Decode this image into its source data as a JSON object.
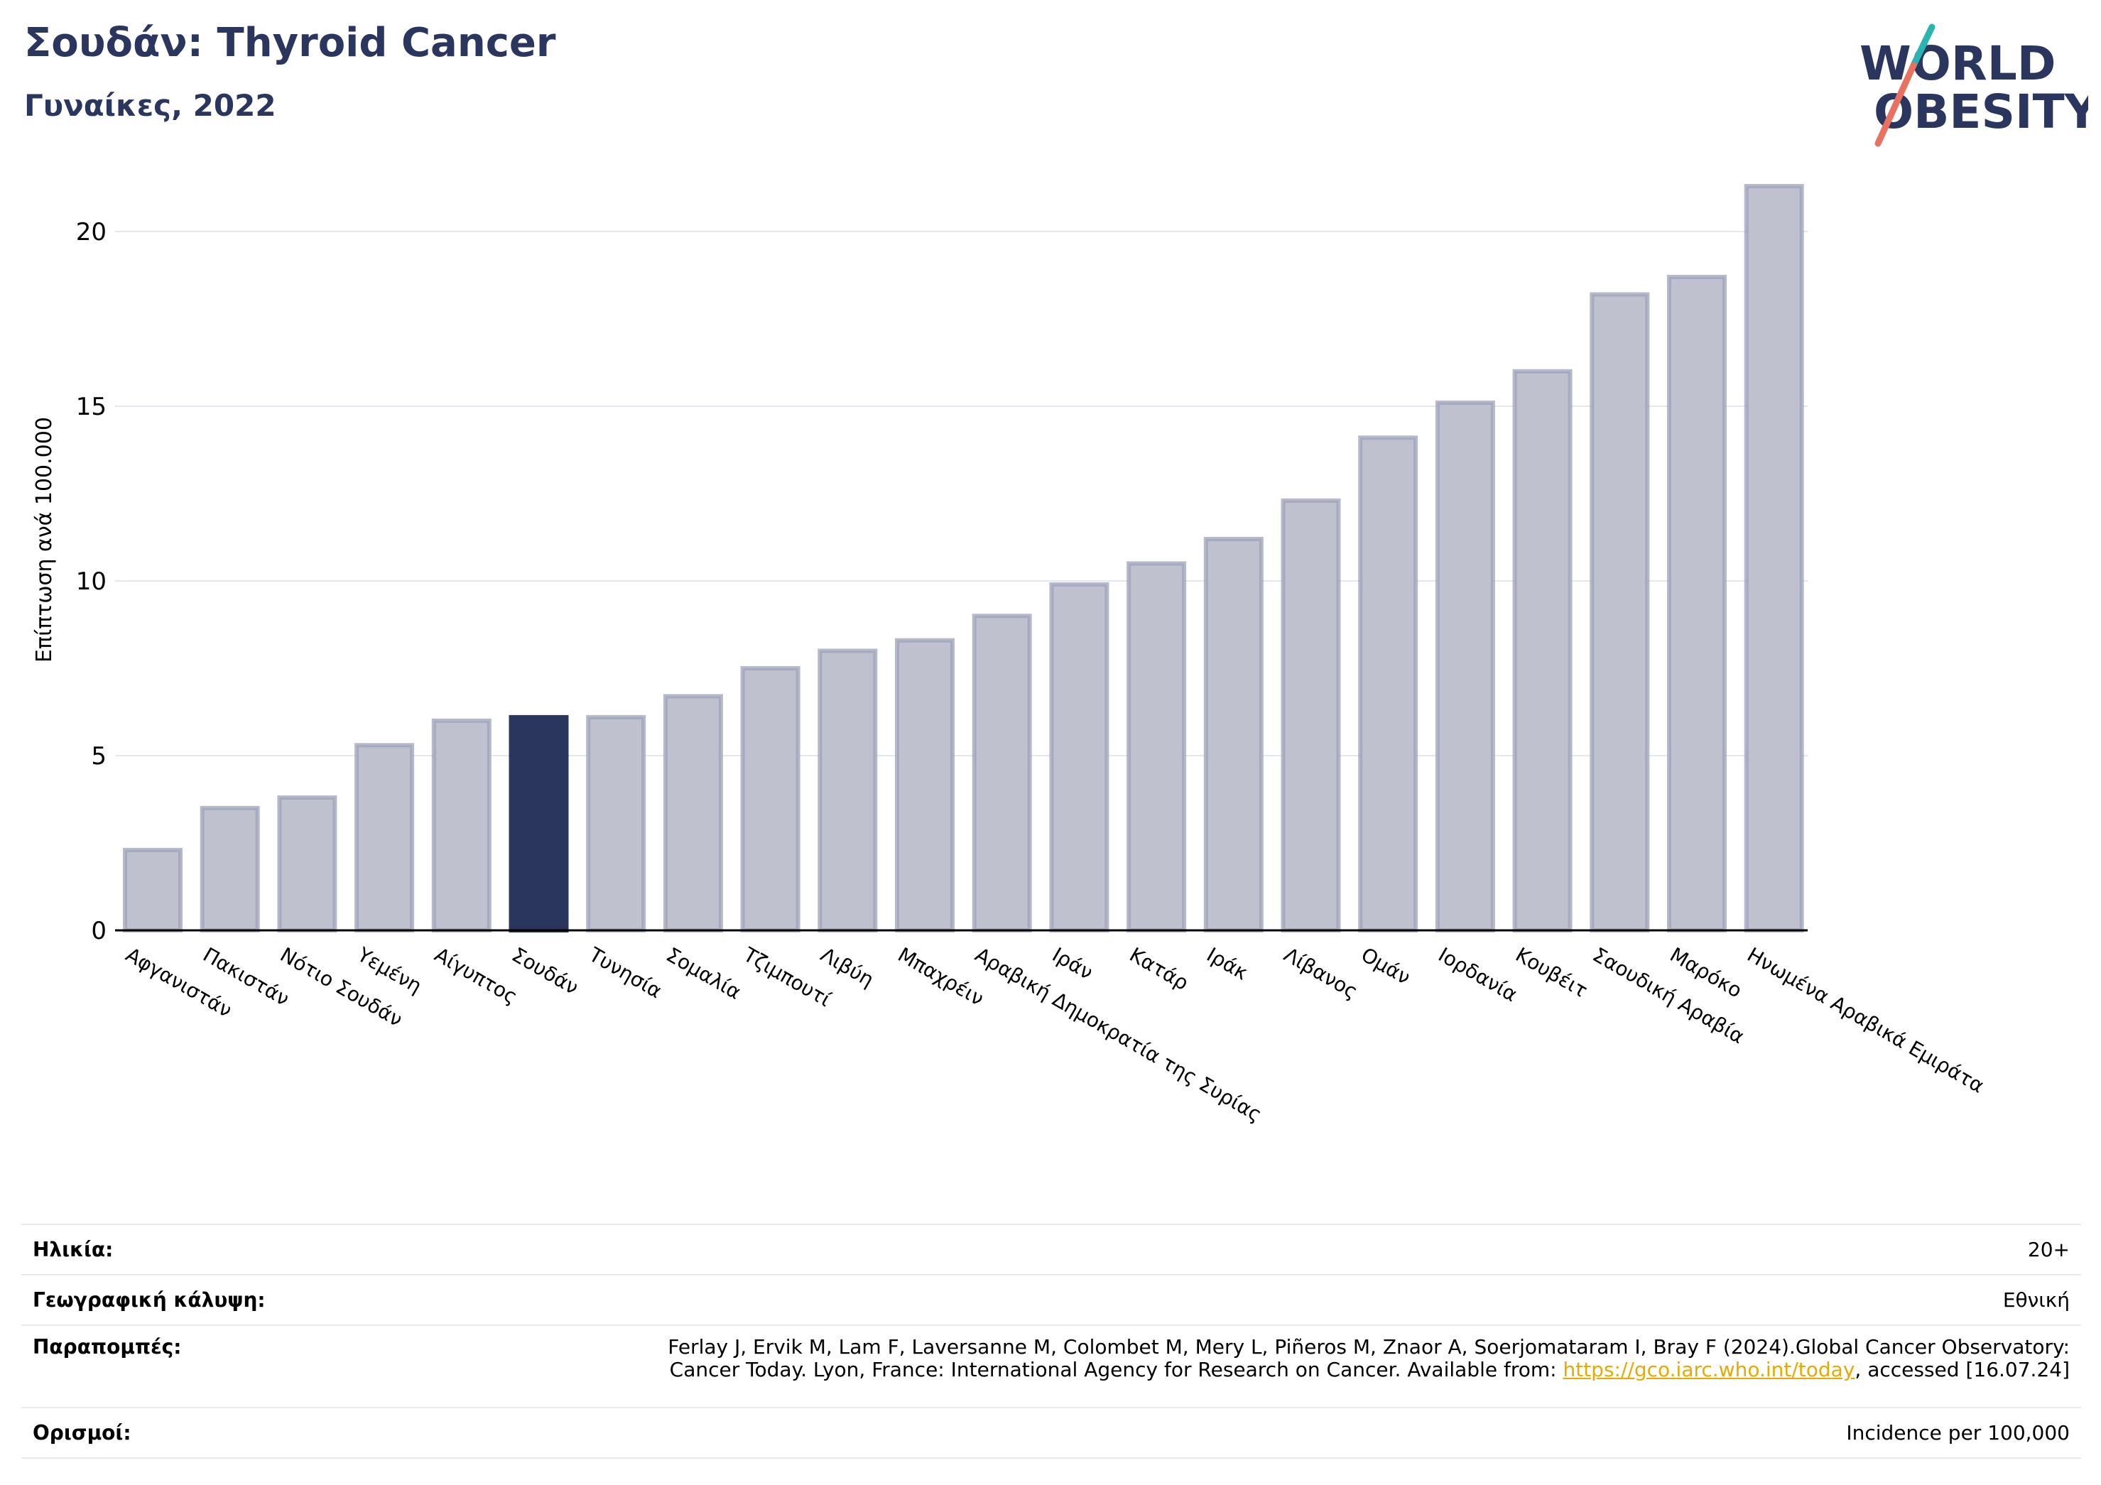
{
  "header": {
    "title": "Σουδάν: Thyroid Cancer",
    "subtitle": "Γυναίκες, 2022"
  },
  "logo": {
    "line1": "WORLD",
    "line2": "OBESITY",
    "colors": {
      "text": "#2b365f",
      "slash_teal": "#2bb5b0",
      "slash_coral": "#e9715f"
    }
  },
  "chart_data": {
    "type": "bar",
    "ylabel": "Επίπτωση ανά 100.000",
    "xlabel": "",
    "ylim": [
      0,
      22
    ],
    "yticks": [
      0,
      5,
      10,
      15,
      20
    ],
    "grid": true,
    "highlight": "Σουδάν",
    "colors": {
      "bar": "#bfc1ce",
      "bar_border": "#9ea2b8",
      "highlight": "#2b365f"
    },
    "categories": [
      "Αφγανιστάν",
      "Πακιστάν",
      "Νότιο Σουδάν",
      "Υεμένη",
      "Αίγυπτος",
      "Σουδάν",
      "Τυνησία",
      "Σομαλία",
      "Τζιμπουτί",
      "Λιβύη",
      "Μπαχρέιν",
      "Αραβική Δημοκρατία της Συρίας",
      "Ιράν",
      "Κατάρ",
      "Ιράκ",
      "Λίβανος",
      "Ομάν",
      "Ιορδανία",
      "Κουβέιτ",
      "Σαουδική Αραβία",
      "Μαρόκο",
      "Ηνωμένα Αραβικά Εμιράτα"
    ],
    "values": [
      2.3,
      3.5,
      3.8,
      5.3,
      6.0,
      6.1,
      6.1,
      6.7,
      7.5,
      8.0,
      8.3,
      9.0,
      9.9,
      10.5,
      11.2,
      12.3,
      14.1,
      15.1,
      16.0,
      18.2,
      18.7,
      21.3
    ]
  },
  "info": {
    "age_label": "Ηλικία:",
    "age_value": "20+",
    "coverage_label": "Γεωγραφική κάλυψη:",
    "coverage_value": "Εθνική",
    "refs_label": "Παραπομπές:",
    "refs_line1": "Ferlay J, Ervik M, Lam F, Laversanne M, Colombet M, Mery L, Piñeros M, Znaor A, Soerjomataram I, Bray F (2024).Global Cancer Observatory:",
    "refs_line2_pre": "Cancer Today. Lyon, France: International Agency for Research on Cancer. Available from: ",
    "refs_link": "https://gco.iarc.who.int/today",
    "refs_line2_post": ", accessed [16.07.24]",
    "defs_label": "Ορισμοί:",
    "defs_value": "Incidence per 100,000"
  }
}
